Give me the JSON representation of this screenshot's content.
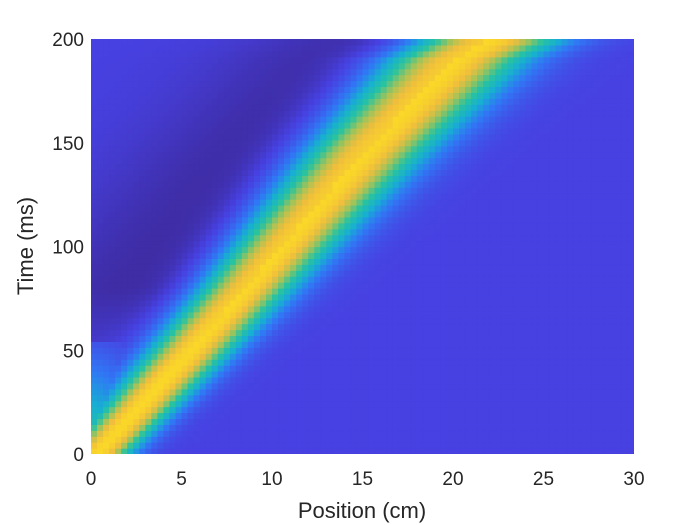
{
  "chart_data": {
    "type": "heatmap",
    "xlabel": "Position (cm)",
    "ylabel": "Time (ms)",
    "xlim": [
      0,
      30
    ],
    "ylim": [
      0,
      200
    ],
    "xticks": [
      "0",
      "5",
      "10",
      "15",
      "20",
      "25",
      "30"
    ],
    "yticks": [
      "0",
      "50",
      "100",
      "150",
      "200"
    ],
    "colormap": "parula",
    "colors": {
      "background": "#4741e2",
      "trough": "#3d2a9c",
      "peak": "#f8d033",
      "mid": "#17c1bd"
    },
    "ridge": {
      "description_values": "peak band position vs time",
      "points": [
        [
          0.3,
          0
        ],
        [
          5,
          45
        ],
        [
          10,
          95
        ],
        [
          15,
          145
        ],
        [
          20,
          190
        ],
        [
          22,
          200
        ]
      ]
    }
  }
}
